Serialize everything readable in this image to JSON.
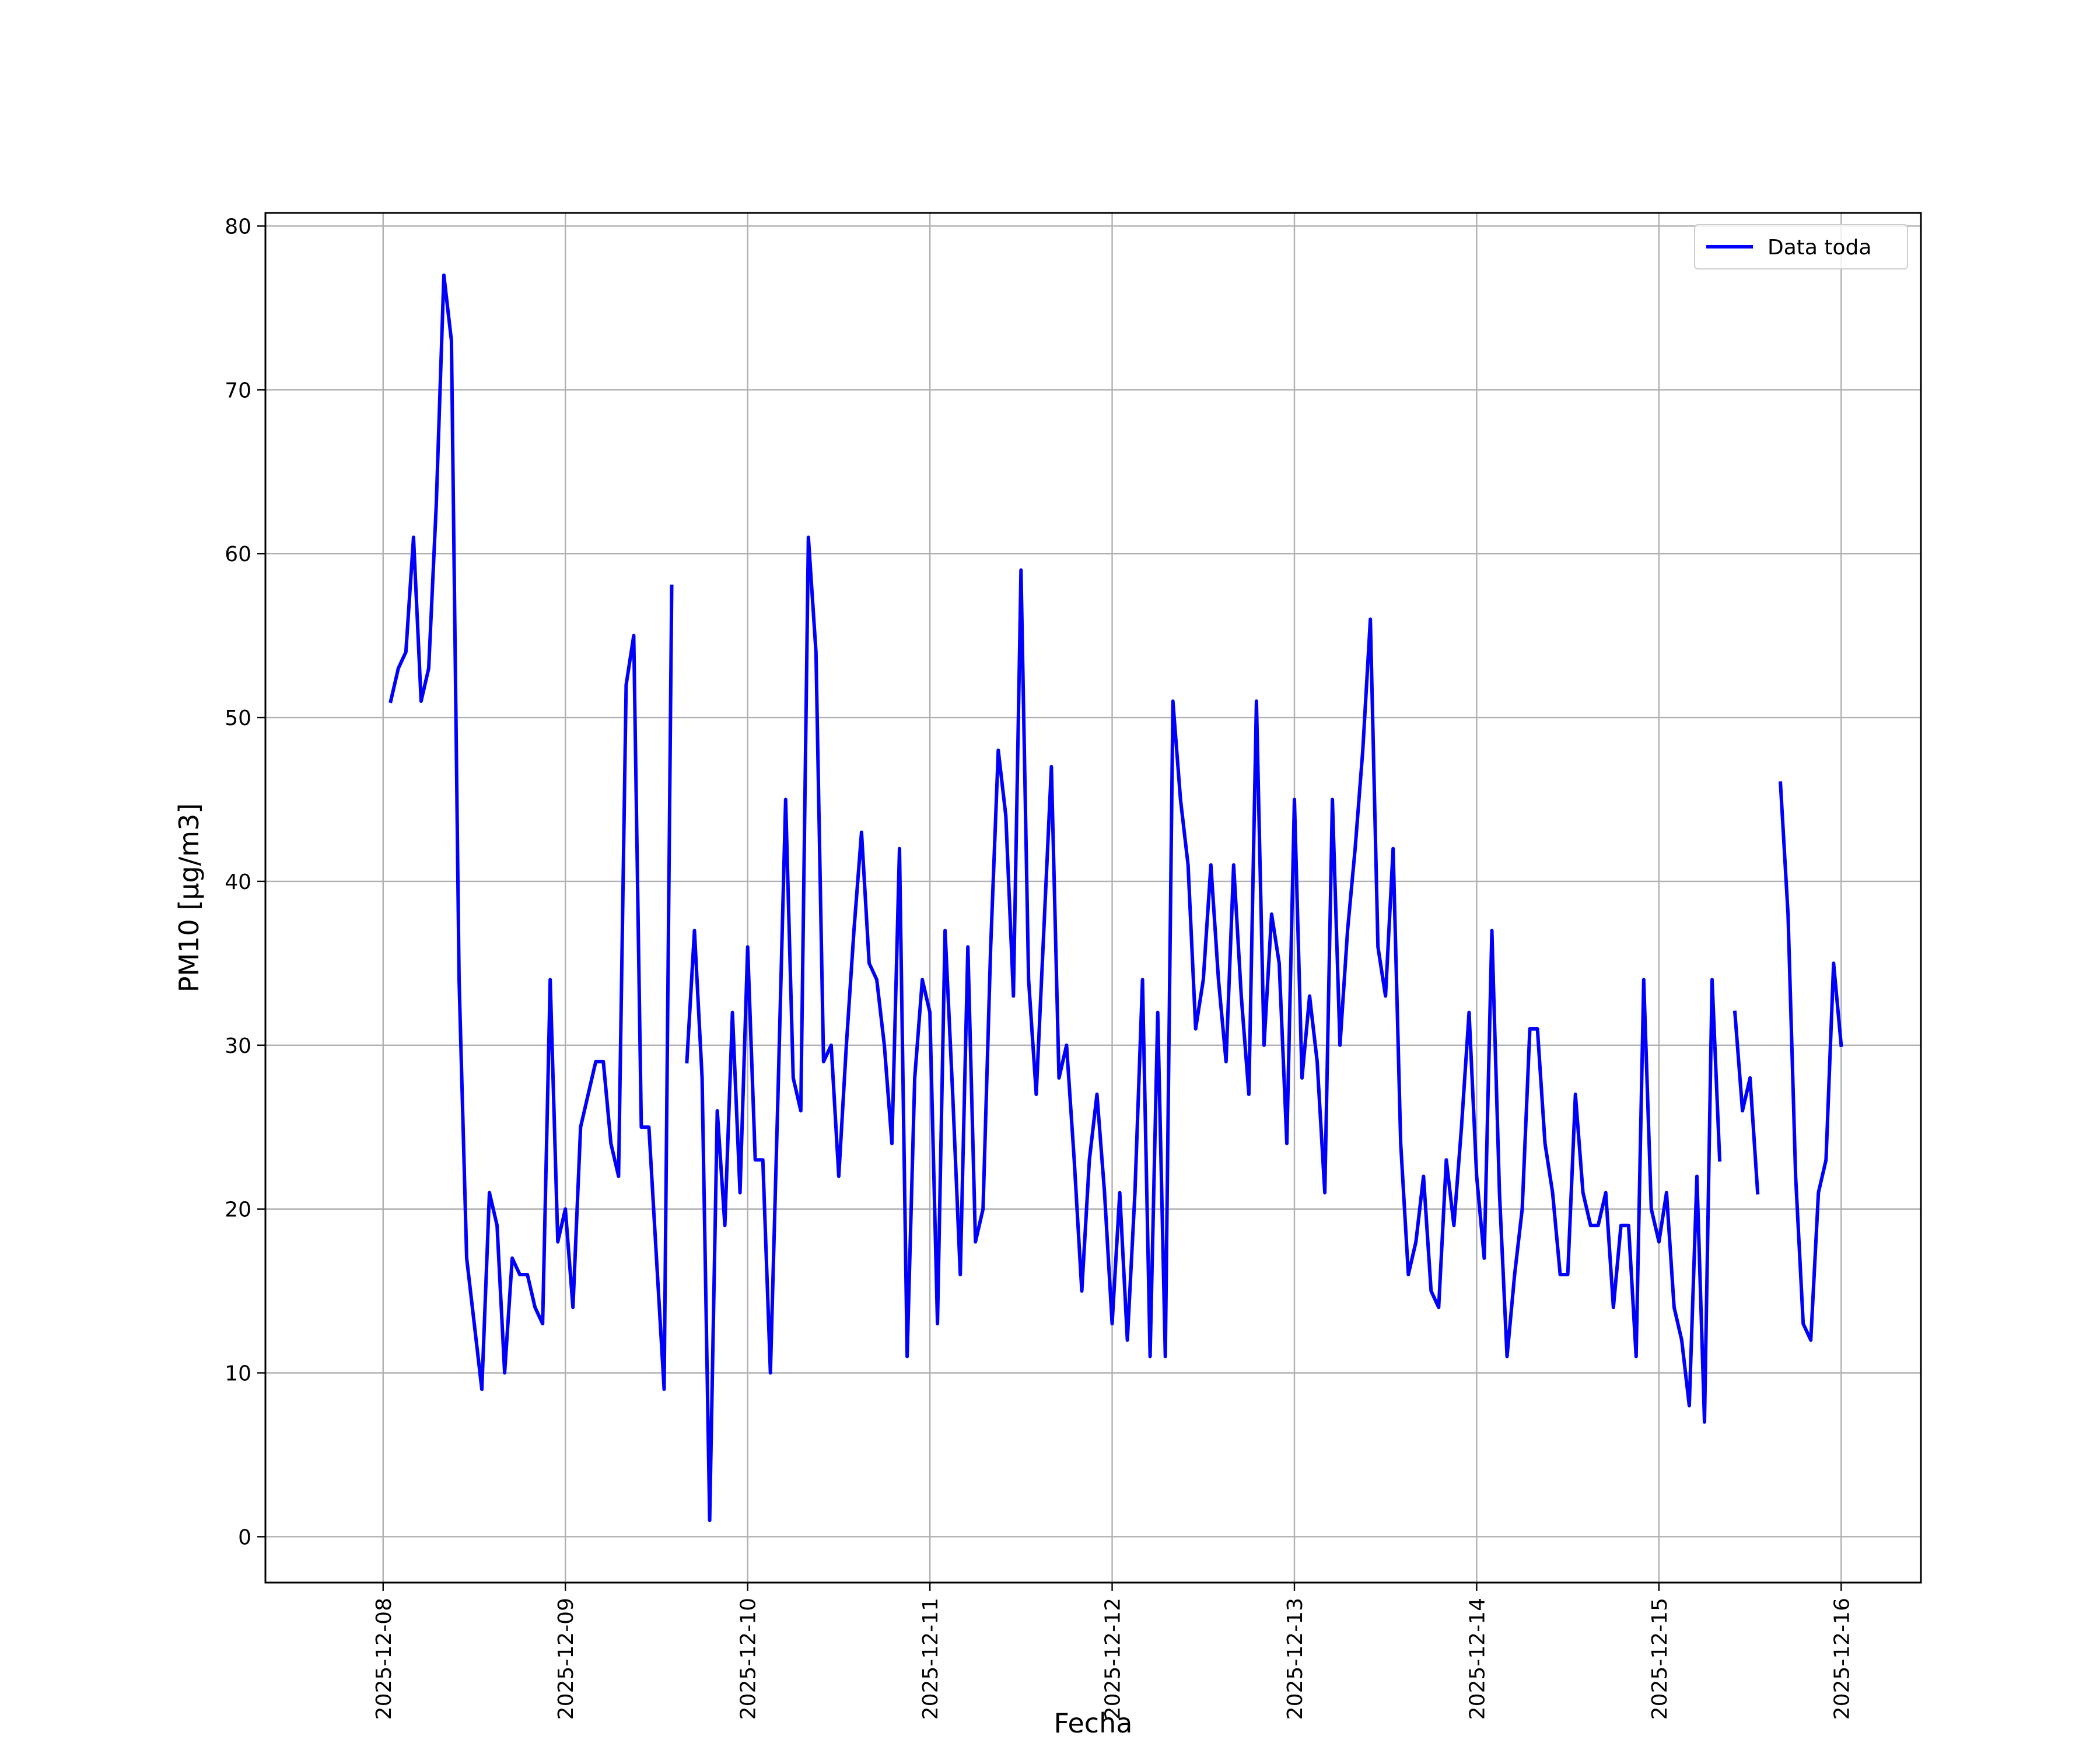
{
  "chart_data": {
    "type": "line",
    "title": "",
    "xlabel": "Fecha",
    "ylabel": "PM10 [μg/m3]",
    "x_ticks": [
      "2025-12-08",
      "2025-12-09",
      "2025-12-10",
      "2025-12-11",
      "2025-12-12",
      "2025-12-13",
      "2025-12-14",
      "2025-12-15",
      "2025-12-16"
    ],
    "y_ticks": [
      0,
      10,
      20,
      30,
      40,
      50,
      60,
      70,
      80
    ],
    "xlim": [
      "2025-12-07 08:30",
      "2025-12-16 10:30"
    ],
    "ylim": [
      -2.8,
      80.8
    ],
    "grid": true,
    "legend_position": "top-right",
    "series": [
      {
        "name": "Data toda",
        "color": "#0000ff",
        "points": [
          [
            "2025-12-08 01:00",
            51
          ],
          [
            "2025-12-08 02:00",
            53
          ],
          [
            "2025-12-08 03:00",
            54
          ],
          [
            "2025-12-08 04:00",
            61
          ],
          [
            "2025-12-08 05:00",
            51
          ],
          [
            "2025-12-08 06:00",
            53
          ],
          [
            "2025-12-08 07:00",
            63
          ],
          [
            "2025-12-08 08:00",
            77
          ],
          [
            "2025-12-08 09:00",
            73
          ],
          [
            "2025-12-08 10:00",
            34
          ],
          [
            "2025-12-08 11:00",
            17
          ],
          [
            "2025-12-08 12:00",
            13
          ],
          [
            "2025-12-08 13:00",
            9
          ],
          [
            "2025-12-08 14:00",
            21
          ],
          [
            "2025-12-08 15:00",
            19
          ],
          [
            "2025-12-08 16:00",
            10
          ],
          [
            "2025-12-08 17:00",
            17
          ],
          [
            "2025-12-08 18:00",
            16
          ],
          [
            "2025-12-08 19:00",
            16
          ],
          [
            "2025-12-08 20:00",
            14
          ],
          [
            "2025-12-08 21:00",
            13
          ],
          [
            "2025-12-08 22:00",
            34
          ],
          [
            "2025-12-08 23:00",
            18
          ],
          [
            "2025-12-09 00:00",
            20
          ],
          [
            "2025-12-09 01:00",
            14
          ],
          [
            "2025-12-09 02:00",
            25
          ],
          [
            "2025-12-09 03:00",
            27
          ],
          [
            "2025-12-09 04:00",
            29
          ],
          [
            "2025-12-09 05:00",
            29
          ],
          [
            "2025-12-09 06:00",
            24
          ],
          [
            "2025-12-09 07:00",
            22
          ],
          [
            "2025-12-09 08:00",
            52
          ],
          [
            "2025-12-09 09:00",
            55
          ],
          [
            "2025-12-09 10:00",
            25
          ],
          [
            "2025-12-09 11:00",
            25
          ],
          [
            "2025-12-09 12:00",
            17
          ],
          [
            "2025-12-09 13:00",
            9
          ],
          [
            "2025-12-09 14:00",
            58
          ],
          null,
          [
            "2025-12-09 16:00",
            29
          ],
          [
            "2025-12-09 17:00",
            37
          ],
          [
            "2025-12-09 18:00",
            28
          ],
          [
            "2025-12-09 19:00",
            1
          ],
          [
            "2025-12-09 20:00",
            26
          ],
          [
            "2025-12-09 21:00",
            19
          ],
          [
            "2025-12-09 22:00",
            32
          ],
          [
            "2025-12-09 23:00",
            21
          ],
          [
            "2025-12-10 00:00",
            36
          ],
          [
            "2025-12-10 01:00",
            23
          ],
          [
            "2025-12-10 02:00",
            23
          ],
          [
            "2025-12-10 03:00",
            10
          ],
          [
            "2025-12-10 04:00",
            27
          ],
          [
            "2025-12-10 05:00",
            45
          ],
          [
            "2025-12-10 06:00",
            28
          ],
          [
            "2025-12-10 07:00",
            26
          ],
          [
            "2025-12-10 08:00",
            61
          ],
          [
            "2025-12-10 09:00",
            54
          ],
          [
            "2025-12-10 10:00",
            29
          ],
          [
            "2025-12-10 11:00",
            30
          ],
          [
            "2025-12-10 12:00",
            22
          ],
          [
            "2025-12-10 13:00",
            30
          ],
          [
            "2025-12-10 14:00",
            37
          ],
          [
            "2025-12-10 15:00",
            43
          ],
          [
            "2025-12-10 16:00",
            35
          ],
          [
            "2025-12-10 17:00",
            34
          ],
          [
            "2025-12-10 18:00",
            30
          ],
          [
            "2025-12-10 19:00",
            24
          ],
          [
            "2025-12-10 20:00",
            42
          ],
          [
            "2025-12-10 21:00",
            11
          ],
          [
            "2025-12-10 22:00",
            28
          ],
          [
            "2025-12-10 23:00",
            34
          ],
          [
            "2025-12-11 00:00",
            32
          ],
          [
            "2025-12-11 01:00",
            13
          ],
          [
            "2025-12-11 02:00",
            37
          ],
          [
            "2025-12-11 03:00",
            27
          ],
          [
            "2025-12-11 04:00",
            16
          ],
          [
            "2025-12-11 05:00",
            36
          ],
          [
            "2025-12-11 06:00",
            18
          ],
          [
            "2025-12-11 07:00",
            20
          ],
          [
            "2025-12-11 08:00",
            36
          ],
          [
            "2025-12-11 09:00",
            48
          ],
          [
            "2025-12-11 10:00",
            44
          ],
          [
            "2025-12-11 11:00",
            33
          ],
          [
            "2025-12-11 12:00",
            59
          ],
          [
            "2025-12-11 13:00",
            34
          ],
          [
            "2025-12-11 14:00",
            27
          ],
          [
            "2025-12-11 15:00",
            37
          ],
          [
            "2025-12-11 16:00",
            47
          ],
          [
            "2025-12-11 17:00",
            28
          ],
          [
            "2025-12-11 18:00",
            30
          ],
          [
            "2025-12-11 19:00",
            23
          ],
          [
            "2025-12-11 20:00",
            15
          ],
          [
            "2025-12-11 21:00",
            23
          ],
          [
            "2025-12-11 22:00",
            27
          ],
          [
            "2025-12-11 23:00",
            21
          ],
          [
            "2025-12-12 00:00",
            13
          ],
          [
            "2025-12-12 01:00",
            21
          ],
          [
            "2025-12-12 02:00",
            12
          ],
          [
            "2025-12-12 03:00",
            21
          ],
          [
            "2025-12-12 04:00",
            34
          ],
          [
            "2025-12-12 05:00",
            11
          ],
          [
            "2025-12-12 06:00",
            32
          ],
          [
            "2025-12-12 07:00",
            11
          ],
          [
            "2025-12-12 08:00",
            51
          ],
          [
            "2025-12-12 09:00",
            45
          ],
          [
            "2025-12-12 10:00",
            41
          ],
          [
            "2025-12-12 11:00",
            31
          ],
          [
            "2025-12-12 12:00",
            34
          ],
          [
            "2025-12-12 13:00",
            41
          ],
          [
            "2025-12-12 14:00",
            34
          ],
          [
            "2025-12-12 15:00",
            29
          ],
          [
            "2025-12-12 16:00",
            41
          ],
          [
            "2025-12-12 17:00",
            33
          ],
          [
            "2025-12-12 18:00",
            27
          ],
          [
            "2025-12-12 19:00",
            51
          ],
          [
            "2025-12-12 20:00",
            30
          ],
          [
            "2025-12-12 21:00",
            38
          ],
          [
            "2025-12-12 22:00",
            35
          ],
          [
            "2025-12-12 23:00",
            24
          ],
          [
            "2025-12-13 00:00",
            45
          ],
          [
            "2025-12-13 01:00",
            28
          ],
          [
            "2025-12-13 02:00",
            33
          ],
          [
            "2025-12-13 03:00",
            29
          ],
          [
            "2025-12-13 04:00",
            21
          ],
          [
            "2025-12-13 05:00",
            45
          ],
          [
            "2025-12-13 06:00",
            30
          ],
          [
            "2025-12-13 07:00",
            37
          ],
          [
            "2025-12-13 08:00",
            42
          ],
          [
            "2025-12-13 09:00",
            48
          ],
          [
            "2025-12-13 10:00",
            56
          ],
          [
            "2025-12-13 11:00",
            36
          ],
          [
            "2025-12-13 12:00",
            33
          ],
          [
            "2025-12-13 13:00",
            42
          ],
          [
            "2025-12-13 14:00",
            24
          ],
          [
            "2025-12-13 15:00",
            16
          ],
          [
            "2025-12-13 16:00",
            18
          ],
          [
            "2025-12-13 17:00",
            22
          ],
          [
            "2025-12-13 18:00",
            15
          ],
          [
            "2025-12-13 19:00",
            14
          ],
          [
            "2025-12-13 20:00",
            23
          ],
          [
            "2025-12-13 21:00",
            19
          ],
          [
            "2025-12-13 22:00",
            25
          ],
          [
            "2025-12-13 23:00",
            32
          ],
          [
            "2025-12-14 00:00",
            22
          ],
          [
            "2025-12-14 01:00",
            17
          ],
          [
            "2025-12-14 02:00",
            37
          ],
          [
            "2025-12-14 03:00",
            21
          ],
          [
            "2025-12-14 04:00",
            11
          ],
          [
            "2025-12-14 05:00",
            16
          ],
          [
            "2025-12-14 06:00",
            20
          ],
          [
            "2025-12-14 07:00",
            31
          ],
          [
            "2025-12-14 08:00",
            31
          ],
          [
            "2025-12-14 09:00",
            24
          ],
          [
            "2025-12-14 10:00",
            21
          ],
          [
            "2025-12-14 11:00",
            16
          ],
          [
            "2025-12-14 12:00",
            16
          ],
          [
            "2025-12-14 13:00",
            27
          ],
          [
            "2025-12-14 14:00",
            21
          ],
          [
            "2025-12-14 15:00",
            19
          ],
          [
            "2025-12-14 16:00",
            19
          ],
          [
            "2025-12-14 17:00",
            21
          ],
          [
            "2025-12-14 18:00",
            14
          ],
          [
            "2025-12-14 19:00",
            19
          ],
          [
            "2025-12-14 20:00",
            19
          ],
          [
            "2025-12-14 21:00",
            11
          ],
          [
            "2025-12-14 22:00",
            34
          ],
          [
            "2025-12-14 23:00",
            20
          ],
          [
            "2025-12-15 00:00",
            18
          ],
          [
            "2025-12-15 01:00",
            21
          ],
          [
            "2025-12-15 02:00",
            14
          ],
          [
            "2025-12-15 03:00",
            12
          ],
          [
            "2025-12-15 04:00",
            8
          ],
          [
            "2025-12-15 05:00",
            22
          ],
          [
            "2025-12-15 06:00",
            7
          ],
          [
            "2025-12-15 07:00",
            34
          ],
          [
            "2025-12-15 08:00",
            23
          ],
          null,
          [
            "2025-12-15 10:00",
            32
          ],
          [
            "2025-12-15 11:00",
            26
          ],
          [
            "2025-12-15 12:00",
            28
          ],
          [
            "2025-12-15 13:00",
            21
          ],
          null,
          [
            "2025-12-15 16:00",
            46
          ],
          [
            "2025-12-15 17:00",
            38
          ],
          [
            "2025-12-15 18:00",
            22
          ],
          [
            "2025-12-15 19:00",
            13
          ],
          [
            "2025-12-15 20:00",
            12
          ],
          [
            "2025-12-15 21:00",
            21
          ],
          [
            "2025-12-15 22:00",
            23
          ],
          [
            "2025-12-15 23:00",
            35
          ],
          [
            "2025-12-16 00:00",
            30
          ]
        ]
      }
    ]
  }
}
